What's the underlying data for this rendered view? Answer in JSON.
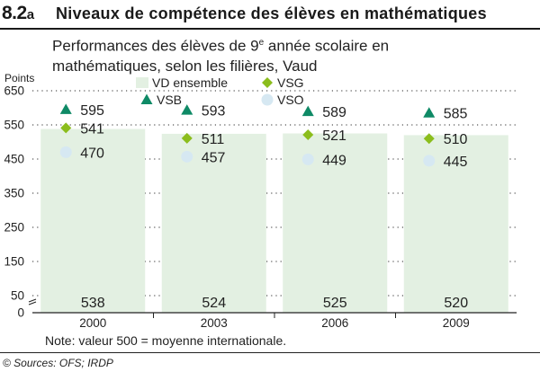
{
  "figure": {
    "number": "8.2",
    "suffix": "a",
    "title": "Niveaux de compétence des élèves en mathématiques",
    "subtitle_line1_pre": "Performances des élèves de 9",
    "subtitle_sup": "e",
    "subtitle_line1_post": " année scolaire en",
    "subtitle_line2": "mathématiques, selon les filières, Vaud",
    "note": "Note: valeur 500 = moyenne internationale.",
    "sources": "© Sources: OFS; IRDP"
  },
  "chart_data": {
    "type": "bar",
    "categories": [
      "2000",
      "2003",
      "2006",
      "2009"
    ],
    "ylabel": "Points",
    "yticks": [
      0,
      50,
      150,
      250,
      350,
      450,
      550,
      650
    ],
    "ylim": [
      0,
      650
    ],
    "grid": true,
    "bar_series": {
      "name": "VD ensemble",
      "values": [
        538,
        524,
        525,
        520
      ],
      "color": "#e3f0e2"
    },
    "marker_series": [
      {
        "name": "VSB",
        "values": [
          595,
          593,
          589,
          585
        ],
        "marker": "triangle",
        "color": "#0f8a66"
      },
      {
        "name": "VSG",
        "values": [
          541,
          511,
          521,
          510
        ],
        "marker": "diamond",
        "color": "#8bbd1c"
      },
      {
        "name": "VSO",
        "values": [
          470,
          457,
          449,
          445
        ],
        "marker": "circle",
        "color": "#d6e8f2"
      }
    ],
    "legend": [
      "VD ensemble",
      "VSG",
      "VSB",
      "VSO"
    ]
  }
}
